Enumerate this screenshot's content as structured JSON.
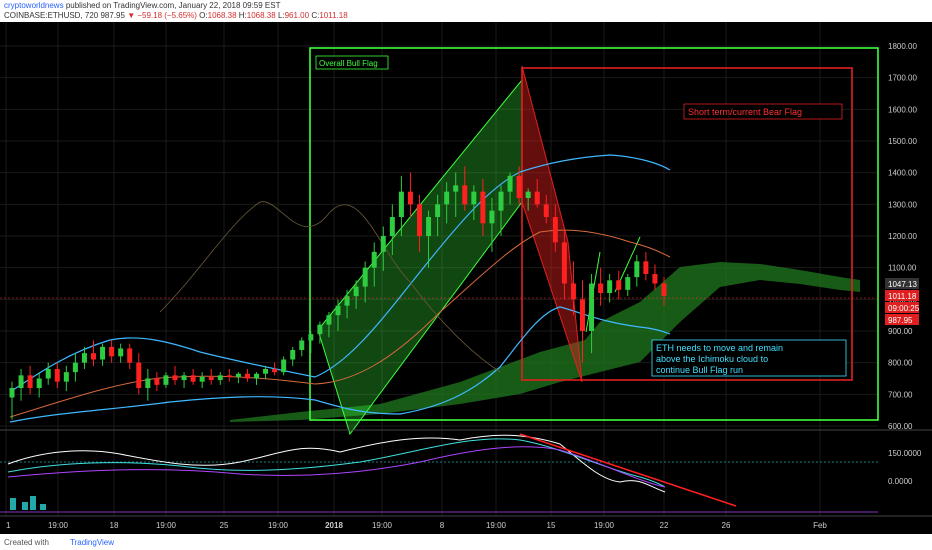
{
  "header": {
    "author": "cryptoworldnews",
    "published_text": "published on TradingView.com, January 22, 2018 09:59 EST",
    "symbol": "COINBASE:ETHUSD, 720",
    "last": "987.95",
    "change": "▼ −59.18 (−5.65%)",
    "o_label": "O:",
    "o_value": "1068.38",
    "h_label": "H:",
    "h_value": "1068.38",
    "l_label": "L:",
    "l_value": "961.00",
    "c_label": "C:",
    "c_value": "1011.18"
  },
  "footer": {
    "created_with": "Created with",
    "tradingview": "TradingView"
  },
  "colors": {
    "background": "#000000",
    "bull": "#2ecc40",
    "bear": "#ff2020",
    "flag_green": "#3cff3c",
    "flag_red": "#e02020",
    "callout": "#40e0ff"
  },
  "chart_data": {
    "type": "candlestick",
    "symbol": "COINBASE:ETHUSD",
    "interval": "720",
    "y_ticks": [
      "1800.00",
      "1700.00",
      "1600.00",
      "1500.00",
      "1400.00",
      "1300.00",
      "1200.00",
      "1100.00",
      "1000.00",
      "900.00",
      "800.00",
      "700.00",
      "600.00"
    ],
    "ylim": [
      600,
      1830
    ],
    "x_ticks": [
      "1",
      "19:00",
      "18",
      "19:00",
      "25",
      "19:00",
      "2018",
      "19:00",
      "8",
      "19:00",
      "15",
      "19:00",
      "22",
      "26",
      "Feb"
    ],
    "price_labels": [
      "1047.13",
      "1011.18",
      "09:00:25",
      "987.95"
    ],
    "annotations": {
      "overall_bull_flag": "Overall Bull Flag",
      "bear_flag": "Short term/current Bear Flag",
      "callout": [
        "ETH needs to move and remain",
        "above the Ichimoku cloud to",
        "continue Bull Flag run"
      ]
    },
    "candles": [
      {
        "o": 690,
        "h": 740,
        "l": 620,
        "c": 720
      },
      {
        "o": 720,
        "h": 780,
        "l": 680,
        "c": 760
      },
      {
        "o": 760,
        "h": 790,
        "l": 700,
        "c": 720
      },
      {
        "o": 720,
        "h": 770,
        "l": 690,
        "c": 750
      },
      {
        "o": 750,
        "h": 800,
        "l": 730,
        "c": 780
      },
      {
        "o": 780,
        "h": 800,
        "l": 720,
        "c": 740
      },
      {
        "o": 740,
        "h": 790,
        "l": 710,
        "c": 770
      },
      {
        "o": 770,
        "h": 830,
        "l": 740,
        "c": 800
      },
      {
        "o": 800,
        "h": 850,
        "l": 780,
        "c": 830
      },
      {
        "o": 830,
        "h": 870,
        "l": 790,
        "c": 810
      },
      {
        "o": 810,
        "h": 860,
        "l": 790,
        "c": 850
      },
      {
        "o": 850,
        "h": 870,
        "l": 800,
        "c": 820
      },
      {
        "o": 820,
        "h": 860,
        "l": 800,
        "c": 845
      },
      {
        "o": 845,
        "h": 860,
        "l": 780,
        "c": 800
      },
      {
        "o": 800,
        "h": 830,
        "l": 700,
        "c": 720
      },
      {
        "o": 720,
        "h": 780,
        "l": 680,
        "c": 750
      },
      {
        "o": 750,
        "h": 770,
        "l": 710,
        "c": 730
      },
      {
        "o": 730,
        "h": 770,
        "l": 720,
        "c": 760
      },
      {
        "o": 760,
        "h": 790,
        "l": 730,
        "c": 745
      },
      {
        "o": 745,
        "h": 770,
        "l": 720,
        "c": 760
      },
      {
        "o": 760,
        "h": 780,
        "l": 730,
        "c": 740
      },
      {
        "o": 740,
        "h": 770,
        "l": 720,
        "c": 755
      },
      {
        "o": 755,
        "h": 780,
        "l": 730,
        "c": 745
      },
      {
        "o": 745,
        "h": 770,
        "l": 730,
        "c": 760
      },
      {
        "o": 760,
        "h": 780,
        "l": 740,
        "c": 755
      },
      {
        "o": 755,
        "h": 770,
        "l": 735,
        "c": 765
      },
      {
        "o": 765,
        "h": 780,
        "l": 740,
        "c": 750
      },
      {
        "o": 750,
        "h": 770,
        "l": 730,
        "c": 765
      },
      {
        "o": 765,
        "h": 790,
        "l": 750,
        "c": 780
      },
      {
        "o": 780,
        "h": 800,
        "l": 760,
        "c": 770
      },
      {
        "o": 770,
        "h": 820,
        "l": 760,
        "c": 810
      },
      {
        "o": 810,
        "h": 850,
        "l": 790,
        "c": 840
      },
      {
        "o": 840,
        "h": 880,
        "l": 820,
        "c": 870
      },
      {
        "o": 870,
        "h": 900,
        "l": 830,
        "c": 890
      },
      {
        "o": 890,
        "h": 930,
        "l": 860,
        "c": 920
      },
      {
        "o": 920,
        "h": 960,
        "l": 880,
        "c": 950
      },
      {
        "o": 950,
        "h": 1000,
        "l": 900,
        "c": 980
      },
      {
        "o": 980,
        "h": 1030,
        "l": 940,
        "c": 1010
      },
      {
        "o": 1010,
        "h": 1060,
        "l": 970,
        "c": 1040
      },
      {
        "o": 1040,
        "h": 1120,
        "l": 990,
        "c": 1100
      },
      {
        "o": 1100,
        "h": 1180,
        "l": 1040,
        "c": 1150
      },
      {
        "o": 1150,
        "h": 1230,
        "l": 1090,
        "c": 1200
      },
      {
        "o": 1200,
        "h": 1300,
        "l": 1140,
        "c": 1260
      },
      {
        "o": 1260,
        "h": 1390,
        "l": 1200,
        "c": 1340
      },
      {
        "o": 1340,
        "h": 1400,
        "l": 1260,
        "c": 1300
      },
      {
        "o": 1300,
        "h": 1330,
        "l": 1150,
        "c": 1200
      },
      {
        "o": 1200,
        "h": 1280,
        "l": 1100,
        "c": 1260
      },
      {
        "o": 1260,
        "h": 1330,
        "l": 1200,
        "c": 1300
      },
      {
        "o": 1300,
        "h": 1370,
        "l": 1240,
        "c": 1340
      },
      {
        "o": 1340,
        "h": 1400,
        "l": 1260,
        "c": 1360
      },
      {
        "o": 1360,
        "h": 1420,
        "l": 1280,
        "c": 1300
      },
      {
        "o": 1300,
        "h": 1360,
        "l": 1250,
        "c": 1340
      },
      {
        "o": 1340,
        "h": 1380,
        "l": 1200,
        "c": 1240
      },
      {
        "o": 1240,
        "h": 1320,
        "l": 1150,
        "c": 1280
      },
      {
        "o": 1280,
        "h": 1360,
        "l": 1200,
        "c": 1340
      },
      {
        "o": 1340,
        "h": 1400,
        "l": 1300,
        "c": 1390
      },
      {
        "o": 1390,
        "h": 1420,
        "l": 1300,
        "c": 1320
      },
      {
        "o": 1320,
        "h": 1350,
        "l": 1280,
        "c": 1340
      },
      {
        "o": 1340,
        "h": 1380,
        "l": 1290,
        "c": 1300
      },
      {
        "o": 1300,
        "h": 1330,
        "l": 1240,
        "c": 1260
      },
      {
        "o": 1260,
        "h": 1300,
        "l": 1150,
        "c": 1180
      },
      {
        "o": 1180,
        "h": 1220,
        "l": 1000,
        "c": 1050
      },
      {
        "o": 1050,
        "h": 1120,
        "l": 950,
        "c": 1000
      },
      {
        "o": 1000,
        "h": 1060,
        "l": 800,
        "c": 900
      },
      {
        "o": 900,
        "h": 1080,
        "l": 830,
        "c": 1050
      },
      {
        "o": 1050,
        "h": 1100,
        "l": 980,
        "c": 1020
      },
      {
        "o": 1020,
        "h": 1080,
        "l": 990,
        "c": 1060
      },
      {
        "o": 1060,
        "h": 1090,
        "l": 1000,
        "c": 1030
      },
      {
        "o": 1030,
        "h": 1080,
        "l": 1010,
        "c": 1070
      },
      {
        "o": 1070,
        "h": 1140,
        "l": 1040,
        "c": 1120
      },
      {
        "o": 1120,
        "h": 1150,
        "l": 1060,
        "c": 1080
      },
      {
        "o": 1080,
        "h": 1110,
        "l": 1030,
        "c": 1050
      },
      {
        "o": 1050,
        "h": 1070,
        "l": 980,
        "c": 1011
      }
    ]
  }
}
